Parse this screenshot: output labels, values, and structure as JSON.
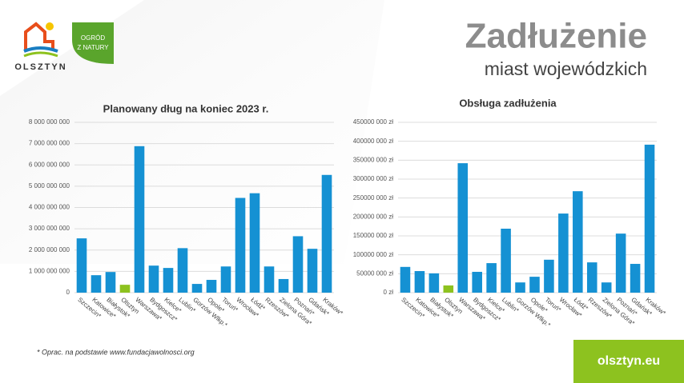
{
  "header": {
    "title": "Zadłużenie",
    "subtitle": "miast wojewódzkich"
  },
  "logos": {
    "city": "OLSZTYN",
    "garden_line1": "OGRÓD",
    "garden_line2": "Z NATURY"
  },
  "footnote": "* Oprac. na podstawie www.fundacjawolnosci.org",
  "website": "olsztyn.eu",
  "chart_data": [
    {
      "type": "bar",
      "title": "Planowany dług na koniec 2023 r.",
      "categories": [
        "Szczecin*",
        "Katowice*",
        "Białystok*",
        "Olsztyn",
        "Warszawa*",
        "Bydgoszcz*",
        "Kielce*",
        "Lublin*",
        "Gorzów Wlkp.*",
        "Opole*",
        "Toruń*",
        "Wrocław*",
        "Łódź*",
        "Rzeszów*",
        "Zielona Góra*",
        "Poznań*",
        "Gdańsk*",
        "Kraków*"
      ],
      "values": [
        2550000000,
        820000000,
        970000000,
        370000000,
        6880000000,
        1270000000,
        1160000000,
        2090000000,
        410000000,
        600000000,
        1230000000,
        4450000000,
        4670000000,
        1230000000,
        640000000,
        2650000000,
        2060000000,
        5530000000
      ],
      "color": "#1591d3",
      "highlight_category": "Olsztyn",
      "highlight_color": "#8dc21f",
      "ylim": [
        0,
        8000000000
      ],
      "yticks": [
        0,
        {
          "value": 1000000000,
          "label": "1 000 000 000"
        },
        {
          "value": 2000000000,
          "label": "2 000 000 000"
        },
        {
          "value": 3000000000,
          "label": "3 000 000 000"
        },
        {
          "value": 4000000000,
          "label": "4 000 000 000"
        },
        {
          "value": 5000000000,
          "label": "5 000 000 000"
        },
        {
          "value": 6000000000,
          "label": "6 000 000 000"
        },
        {
          "value": 7000000000,
          "label": "7 000 000 000"
        },
        {
          "value": 8000000000,
          "label": "8 000 000 000"
        }
      ],
      "grid": true
    },
    {
      "type": "bar",
      "title": "Obsługa zadłużenia",
      "categories": [
        "Szczecin*",
        "Katowice*",
        "Białystok*",
        "Olsztyn",
        "Warszawa*",
        "Bydgoszcz*",
        "Kielce*",
        "Lublin*",
        "Gorzów Wlkp.*",
        "Opole*",
        "Toruń*",
        "Wrocław*",
        "Łódź*",
        "Rzeszów*",
        "Zielona Góra*",
        "Poznań*",
        "Gdańsk*",
        "Kraków*"
      ],
      "values": [
        68000000,
        57000000,
        51000000,
        19000000,
        342000000,
        55000000,
        78000000,
        169000000,
        27000000,
        42000000,
        87000000,
        209000000,
        268000000,
        80000000,
        27000000,
        156000000,
        76000000,
        391000000
      ],
      "color": "#1591d3",
      "highlight_category": "Olsztyn",
      "highlight_color": "#8dc21f",
      "ylim": [
        0,
        450000000
      ],
      "yticks": [
        {
          "value": 0,
          "label": "0 zł"
        },
        {
          "value": 50000000,
          "label": "50000 000 zł"
        },
        {
          "value": 100000000,
          "label": "100000 000 zł"
        },
        {
          "value": 150000000,
          "label": "150000 000 zł"
        },
        {
          "value": 200000000,
          "label": "200000 000 zł"
        },
        {
          "value": 250000000,
          "label": "250000 000 zł"
        },
        {
          "value": 300000000,
          "label": "300000 000 zł"
        },
        {
          "value": 350000000,
          "label": "350000 000 zł"
        },
        {
          "value": 400000000,
          "label": "400000 000 zł"
        },
        {
          "value": 450000000,
          "label": "450000 000 zł"
        }
      ],
      "grid": true
    }
  ]
}
